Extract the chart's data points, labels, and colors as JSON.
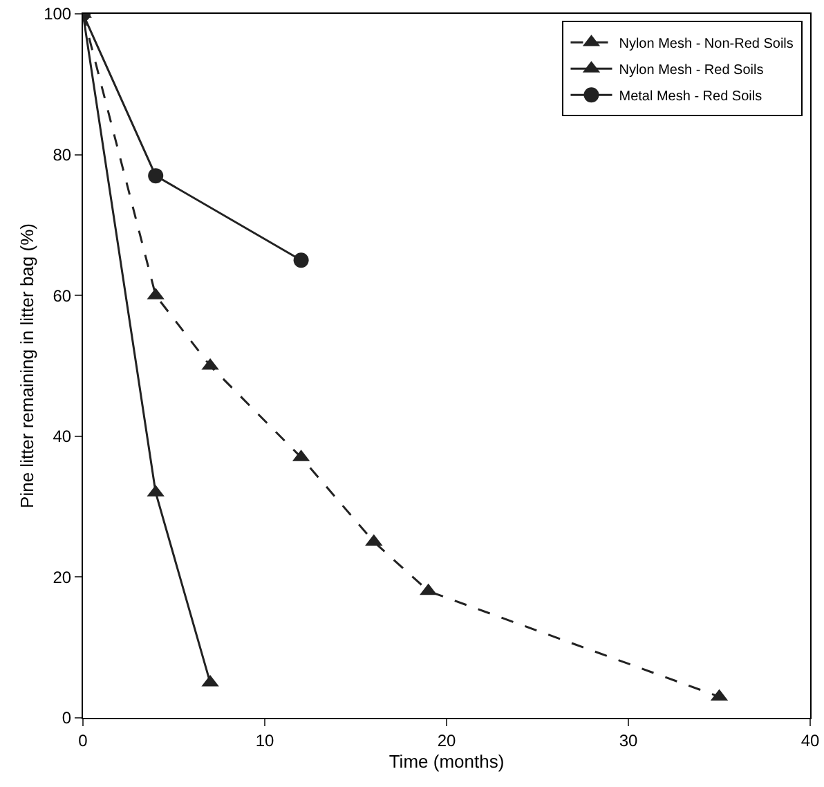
{
  "chart_data": {
    "type": "line",
    "xlabel": "Time (months)",
    "ylabel": "Pine litter remaining in litter bag (%)",
    "xlim": [
      0,
      40
    ],
    "xticks": [
      0,
      10,
      20,
      30,
      40
    ],
    "ylim": [
      0,
      100
    ],
    "yticks": [
      0,
      20,
      40,
      60,
      80,
      100
    ],
    "grid": false,
    "legend": "top right",
    "series": [
      {
        "name": "Nylon Mesh - Non-Red Soils",
        "color": "#222222",
        "line_style": "dashed",
        "marker": "triangle",
        "x": [
          0,
          4,
          7,
          12,
          16,
          19,
          35
        ],
        "values": [
          100,
          60,
          50,
          37,
          25,
          18,
          3
        ]
      },
      {
        "name": "Nylon Mesh - Red Soils",
        "color": "#222222",
        "line_style": "solid",
        "marker": "triangle",
        "x": [
          0,
          4,
          7
        ],
        "values": [
          100,
          32,
          5
        ]
      },
      {
        "name": "Metal Mesh - Red Soils",
        "color": "#222222",
        "line_style": "solid",
        "marker": "circle",
        "x": [
          0,
          4,
          12
        ],
        "values": [
          100,
          77,
          65
        ]
      }
    ]
  }
}
